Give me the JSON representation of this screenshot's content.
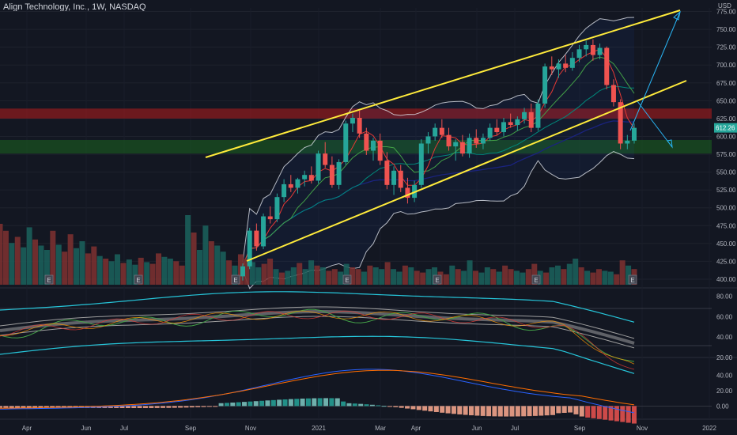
{
  "header": {
    "title": "Align Technology, Inc., 1W, NASDAQ",
    "currency": "USD"
  },
  "colors": {
    "up": "#26a69a",
    "down": "#ef5350",
    "channel": "#ffeb3b",
    "projection": "#29b6f6",
    "resistance_zone": "#b71c1c",
    "support_zone": "#1b5e20",
    "rsi": "#26c6da"
  },
  "chart_data": [
    {
      "type": "candlestick",
      "title": "Align Technology, Inc., 1W, NASDAQ",
      "ylim": [
        390,
        780
      ],
      "y_ticks": [
        400,
        425,
        450,
        475,
        500,
        525,
        550,
        575,
        600,
        625,
        650,
        675,
        700,
        725,
        750,
        775
      ],
      "last_price_label": "612.26",
      "candles": [
        {
          "o": 404,
          "h": 422,
          "l": 398,
          "c": 418
        },
        {
          "o": 418,
          "h": 472,
          "l": 414,
          "c": 468
        },
        {
          "o": 468,
          "h": 478,
          "l": 440,
          "c": 446
        },
        {
          "o": 446,
          "h": 492,
          "l": 442,
          "c": 488
        },
        {
          "o": 488,
          "h": 502,
          "l": 478,
          "c": 484
        },
        {
          "o": 484,
          "h": 520,
          "l": 480,
          "c": 515
        },
        {
          "o": 515,
          "h": 540,
          "l": 508,
          "c": 533
        },
        {
          "o": 533,
          "h": 546,
          "l": 522,
          "c": 528
        },
        {
          "o": 528,
          "h": 542,
          "l": 520,
          "c": 540
        },
        {
          "o": 540,
          "h": 552,
          "l": 530,
          "c": 546
        },
        {
          "o": 546,
          "h": 558,
          "l": 534,
          "c": 538
        },
        {
          "o": 538,
          "h": 580,
          "l": 534,
          "c": 576
        },
        {
          "o": 576,
          "h": 592,
          "l": 556,
          "c": 560
        },
        {
          "o": 560,
          "h": 572,
          "l": 528,
          "c": 532
        },
        {
          "o": 532,
          "h": 568,
          "l": 526,
          "c": 564
        },
        {
          "o": 564,
          "h": 622,
          "l": 560,
          "c": 618
        },
        {
          "o": 618,
          "h": 632,
          "l": 606,
          "c": 626
        },
        {
          "o": 626,
          "h": 636,
          "l": 598,
          "c": 604
        },
        {
          "o": 604,
          "h": 612,
          "l": 574,
          "c": 580
        },
        {
          "o": 580,
          "h": 598,
          "l": 566,
          "c": 594
        },
        {
          "o": 594,
          "h": 604,
          "l": 560,
          "c": 566
        },
        {
          "o": 566,
          "h": 578,
          "l": 526,
          "c": 532
        },
        {
          "o": 532,
          "h": 558,
          "l": 518,
          "c": 552
        },
        {
          "o": 552,
          "h": 560,
          "l": 522,
          "c": 528
        },
        {
          "o": 528,
          "h": 542,
          "l": 506,
          "c": 514
        },
        {
          "o": 514,
          "h": 538,
          "l": 508,
          "c": 532
        },
        {
          "o": 532,
          "h": 596,
          "l": 528,
          "c": 590
        },
        {
          "o": 590,
          "h": 606,
          "l": 576,
          "c": 600
        },
        {
          "o": 600,
          "h": 618,
          "l": 594,
          "c": 612
        },
        {
          "o": 612,
          "h": 624,
          "l": 598,
          "c": 602
        },
        {
          "o": 602,
          "h": 612,
          "l": 580,
          "c": 586
        },
        {
          "o": 586,
          "h": 596,
          "l": 566,
          "c": 592
        },
        {
          "o": 592,
          "h": 602,
          "l": 572,
          "c": 576
        },
        {
          "o": 576,
          "h": 604,
          "l": 570,
          "c": 598
        },
        {
          "o": 598,
          "h": 610,
          "l": 584,
          "c": 590
        },
        {
          "o": 590,
          "h": 604,
          "l": 582,
          "c": 598
        },
        {
          "o": 598,
          "h": 618,
          "l": 594,
          "c": 612
        },
        {
          "o": 612,
          "h": 624,
          "l": 602,
          "c": 606
        },
        {
          "o": 606,
          "h": 626,
          "l": 600,
          "c": 620
        },
        {
          "o": 620,
          "h": 632,
          "l": 612,
          "c": 616
        },
        {
          "o": 616,
          "h": 628,
          "l": 608,
          "c": 624
        },
        {
          "o": 624,
          "h": 640,
          "l": 618,
          "c": 634
        },
        {
          "o": 634,
          "h": 646,
          "l": 606,
          "c": 612
        },
        {
          "o": 612,
          "h": 652,
          "l": 608,
          "c": 646
        },
        {
          "o": 646,
          "h": 702,
          "l": 640,
          "c": 698
        },
        {
          "o": 698,
          "h": 712,
          "l": 686,
          "c": 694
        },
        {
          "o": 694,
          "h": 708,
          "l": 682,
          "c": 702
        },
        {
          "o": 702,
          "h": 714,
          "l": 690,
          "c": 696
        },
        {
          "o": 696,
          "h": 718,
          "l": 692,
          "c": 710
        },
        {
          "o": 710,
          "h": 728,
          "l": 704,
          "c": 722
        },
        {
          "o": 722,
          "h": 734,
          "l": 712,
          "c": 728
        },
        {
          "o": 728,
          "h": 736,
          "l": 706,
          "c": 714
        },
        {
          "o": 714,
          "h": 730,
          "l": 708,
          "c": 724
        },
        {
          "o": 724,
          "h": 726,
          "l": 666,
          "c": 672
        },
        {
          "o": 672,
          "h": 680,
          "l": 642,
          "c": 648
        },
        {
          "o": 648,
          "h": 652,
          "l": 582,
          "c": 590
        },
        {
          "o": 590,
          "h": 602,
          "l": 582,
          "c": 594
        },
        {
          "o": 594,
          "h": 618,
          "l": 590,
          "c": 612
        }
      ],
      "channel_upper": [
        [
          260,
          199
        ],
        [
          860,
          13
        ]
      ],
      "channel_lower": [
        [
          312,
          330
        ],
        [
          868,
          102
        ]
      ],
      "projection_up": [
        [
          797,
          165
        ],
        [
          860,
          15
        ]
      ],
      "projection_down": [
        [
          806,
          128
        ],
        [
          850,
          186
        ]
      ],
      "resistance_zone": [
        625,
        639
      ],
      "support_zone": [
        576,
        595
      ],
      "earnings_markers": [
        62,
        175,
        298,
        439,
        553,
        678,
        800
      ],
      "volume": [
        70,
        62,
        48,
        55,
        43,
        66,
        52,
        45,
        40,
        62,
        46,
        38,
        58,
        42,
        50,
        36,
        44,
        33,
        30,
        27,
        35,
        25,
        29,
        23,
        31,
        26,
        24,
        36,
        32,
        30,
        27,
        22,
        80,
        60,
        40,
        68,
        50,
        45,
        38,
        28,
        22,
        35,
        30,
        26,
        20,
        24,
        30,
        18,
        14,
        16,
        20,
        25,
        18,
        28,
        22,
        20,
        16,
        18,
        15,
        24,
        20,
        18,
        15,
        22,
        20,
        18,
        26,
        18,
        15,
        22,
        20,
        16,
        14,
        18,
        20,
        15,
        12,
        22,
        18,
        16,
        28,
        16,
        14,
        20,
        18,
        15,
        22,
        18,
        16,
        14,
        18,
        24,
        16,
        14,
        20,
        22,
        18,
        24,
        30,
        20,
        16,
        14,
        18,
        16,
        15,
        12,
        28,
        22,
        18
      ]
    },
    {
      "type": "line",
      "name": "RSI",
      "ylim": [
        20,
        85
      ],
      "y_ticks": [
        20,
        40,
        60,
        80
      ]
    },
    {
      "type": "line",
      "name": "MACD",
      "ylim": [
        -15,
        60
      ],
      "y_ticks": [
        0,
        20,
        40
      ]
    }
  ],
  "x_axis": {
    "labels": [
      "Apr",
      "Jun",
      "Jul",
      "Sep",
      "Nov",
      "2021",
      "Mar",
      "Apr",
      "Jun",
      "Jul",
      "Sep",
      "Nov",
      "2022"
    ]
  }
}
